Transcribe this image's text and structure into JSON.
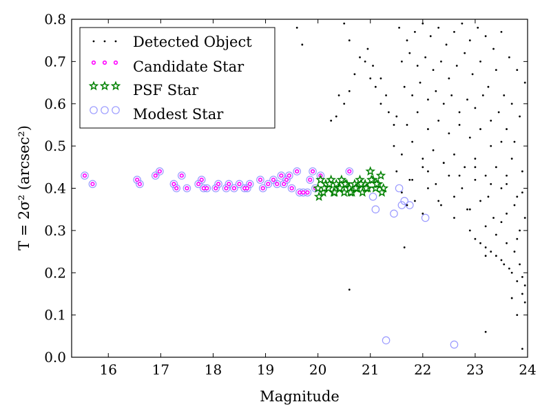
{
  "chart_data": {
    "type": "scatter",
    "title": "",
    "xlabel": "Magnitude",
    "ylabel": "T = 2σ² (arcsec²)",
    "xlim": [
      15.3,
      24.0
    ],
    "ylim": [
      0.0,
      0.8
    ],
    "xticks": [
      16,
      17,
      18,
      19,
      20,
      21,
      22,
      23,
      24
    ],
    "yticks": [
      0.0,
      0.1,
      0.2,
      0.3,
      0.4,
      0.5,
      0.6,
      0.7,
      0.8
    ],
    "grid": false,
    "legend_position": "top-left",
    "series": [
      {
        "name": "Detected Object",
        "marker": "dot",
        "color": "#000000",
        "x": [
          21.55,
          21.7,
          21.85,
          22.0,
          22.15,
          22.3,
          22.45,
          22.6,
          22.75,
          22.9,
          23.05,
          23.2,
          23.35,
          23.5,
          23.65,
          23.8,
          23.95,
          21.6,
          21.75,
          21.9,
          22.05,
          22.2,
          22.35,
          22.5,
          22.65,
          22.8,
          22.95,
          23.1,
          23.25,
          23.4,
          23.55,
          23.7,
          23.85,
          21.65,
          21.8,
          21.95,
          22.1,
          22.25,
          22.4,
          22.55,
          22.7,
          22.85,
          23.0,
          23.15,
          23.3,
          23.45,
          23.6,
          23.75,
          21.5,
          21.7,
          21.9,
          22.1,
          22.3,
          22.5,
          22.7,
          22.9,
          23.1,
          23.3,
          23.5,
          23.7,
          23.9,
          21.45,
          21.6,
          21.8,
          22.0,
          22.2,
          22.4,
          22.6,
          22.8,
          23.0,
          23.2,
          23.4,
          23.6,
          23.8,
          21.5,
          21.75,
          22.0,
          22.25,
          22.5,
          22.75,
          23.0,
          23.25,
          23.5,
          23.75,
          23.95,
          21.6,
          21.85,
          22.1,
          22.35,
          22.6,
          22.85,
          23.1,
          23.35,
          23.6,
          23.85,
          21.7,
          22.0,
          22.3,
          22.6,
          22.9,
          23.2,
          23.5,
          23.8,
          21.8,
          22.1,
          22.4,
          22.7,
          23.0,
          23.3,
          23.6,
          23.9,
          20.95,
          21.05,
          21.2,
          21.3,
          21.35,
          21.45,
          20.8,
          20.7,
          20.6,
          20.5,
          20.4,
          20.35,
          20.25,
          19.6,
          19.7,
          20.5,
          20.6,
          20.9,
          21.0,
          21.1,
          21.2,
          23.0,
          23.2,
          23.4,
          23.55,
          23.7,
          23.8,
          23.9,
          23.95,
          22.9,
          23.1,
          23.3,
          23.5,
          23.65,
          23.75,
          23.85,
          23.9,
          23.95,
          23.6,
          23.4,
          23.2,
          23.7,
          20.6,
          21.65,
          23.2,
          23.8,
          23.9
        ],
        "y": [
          0.78,
          0.75,
          0.77,
          0.79,
          0.76,
          0.78,
          0.74,
          0.77,
          0.79,
          0.75,
          0.78,
          0.76,
          0.73,
          0.77,
          0.71,
          0.68,
          0.65,
          0.7,
          0.72,
          0.69,
          0.71,
          0.68,
          0.7,
          0.66,
          0.69,
          0.72,
          0.67,
          0.7,
          0.64,
          0.68,
          0.62,
          0.6,
          0.57,
          0.64,
          0.62,
          0.65,
          0.61,
          0.63,
          0.6,
          0.62,
          0.58,
          0.61,
          0.59,
          0.62,
          0.56,
          0.58,
          0.54,
          0.51,
          0.57,
          0.55,
          0.58,
          0.54,
          0.56,
          0.53,
          0.55,
          0.52,
          0.54,
          0.5,
          0.51,
          0.47,
          0.44,
          0.5,
          0.48,
          0.51,
          0.47,
          0.49,
          0.46,
          0.48,
          0.45,
          0.47,
          0.43,
          0.45,
          0.41,
          0.38,
          0.44,
          0.42,
          0.45,
          0.41,
          0.43,
          0.4,
          0.42,
          0.38,
          0.4,
          0.36,
          0.33,
          0.39,
          0.37,
          0.4,
          0.36,
          0.38,
          0.35,
          0.37,
          0.33,
          0.34,
          0.3,
          0.36,
          0.34,
          0.37,
          0.33,
          0.35,
          0.31,
          0.32,
          0.28,
          0.42,
          0.44,
          0.46,
          0.43,
          0.45,
          0.41,
          0.43,
          0.39,
          0.73,
          0.69,
          0.66,
          0.62,
          0.58,
          0.55,
          0.71,
          0.67,
          0.63,
          0.6,
          0.62,
          0.57,
          0.56,
          0.78,
          0.74,
          0.79,
          0.75,
          0.7,
          0.66,
          0.64,
          0.6,
          0.28,
          0.26,
          0.24,
          0.22,
          0.2,
          0.18,
          0.15,
          0.13,
          0.3,
          0.27,
          0.25,
          0.23,
          0.21,
          0.25,
          0.22,
          0.19,
          0.17,
          0.27,
          0.29,
          0.24,
          0.14,
          0.16,
          0.26,
          0.06,
          0.1,
          0.02
        ]
      },
      {
        "name": "Candidate Star",
        "marker": "circle-small",
        "color": "#ff00ff",
        "x": [
          15.55,
          15.7,
          16.55,
          16.6,
          16.9,
          16.98,
          17.25,
          17.3,
          17.4,
          17.5,
          17.72,
          17.78,
          17.82,
          17.88,
          18.05,
          18.1,
          18.25,
          18.3,
          18.4,
          18.5,
          18.6,
          18.65,
          18.7,
          18.9,
          18.95,
          19.05,
          19.15,
          19.22,
          19.3,
          19.35,
          19.4,
          19.45,
          19.5,
          19.6,
          19.65,
          19.72,
          19.8,
          19.85,
          19.9,
          19.95,
          20.05,
          20.6
        ],
        "y": [
          0.43,
          0.41,
          0.42,
          0.41,
          0.43,
          0.44,
          0.41,
          0.4,
          0.43,
          0.4,
          0.41,
          0.42,
          0.4,
          0.4,
          0.4,
          0.41,
          0.4,
          0.41,
          0.4,
          0.41,
          0.4,
          0.4,
          0.41,
          0.42,
          0.4,
          0.41,
          0.42,
          0.41,
          0.43,
          0.41,
          0.42,
          0.43,
          0.4,
          0.44,
          0.39,
          0.39,
          0.39,
          0.42,
          0.44,
          0.4,
          0.43,
          0.44
        ]
      },
      {
        "name": "PSF Star",
        "marker": "star",
        "color": "#008000",
        "x": [
          20.0,
          20.05,
          20.1,
          20.15,
          20.2,
          20.25,
          20.3,
          20.35,
          20.4,
          20.45,
          20.5,
          20.55,
          20.6,
          20.65,
          20.7,
          20.75,
          20.8,
          20.85,
          20.9,
          20.95,
          21.0,
          21.05,
          21.1,
          21.15,
          21.2,
          21.25,
          20.02,
          20.12,
          20.22,
          20.32,
          20.42,
          20.52,
          20.62,
          20.72,
          20.82,
          20.92,
          21.02,
          21.12,
          21.22
        ],
        "y": [
          0.4,
          0.42,
          0.39,
          0.41,
          0.4,
          0.42,
          0.39,
          0.41,
          0.4,
          0.42,
          0.39,
          0.41,
          0.4,
          0.39,
          0.41,
          0.4,
          0.42,
          0.39,
          0.41,
          0.4,
          0.44,
          0.42,
          0.4,
          0.41,
          0.43,
          0.4,
          0.38,
          0.4,
          0.41,
          0.39,
          0.4,
          0.41,
          0.39,
          0.4,
          0.41,
          0.4,
          0.42,
          0.41,
          0.39
        ]
      },
      {
        "name": "Modest Star",
        "marker": "circle-open",
        "color": "#9999ff",
        "x": [
          15.55,
          15.7,
          16.55,
          16.6,
          16.9,
          16.98,
          17.25,
          17.3,
          17.4,
          17.5,
          17.72,
          17.78,
          17.82,
          17.88,
          18.05,
          18.1,
          18.25,
          18.3,
          18.4,
          18.5,
          18.6,
          18.65,
          18.7,
          18.9,
          18.95,
          19.05,
          19.15,
          19.22,
          19.3,
          19.35,
          19.4,
          19.45,
          19.5,
          19.6,
          19.65,
          19.72,
          19.8,
          19.85,
          19.9,
          19.95,
          20.05,
          20.6,
          21.05,
          21.1,
          21.45,
          21.55,
          21.6,
          21.65,
          21.75,
          22.05,
          21.3,
          22.6
        ],
        "y": [
          0.43,
          0.41,
          0.42,
          0.41,
          0.43,
          0.44,
          0.41,
          0.4,
          0.43,
          0.4,
          0.41,
          0.42,
          0.4,
          0.4,
          0.4,
          0.41,
          0.4,
          0.41,
          0.4,
          0.41,
          0.4,
          0.4,
          0.41,
          0.42,
          0.4,
          0.41,
          0.42,
          0.41,
          0.43,
          0.41,
          0.42,
          0.43,
          0.4,
          0.44,
          0.39,
          0.39,
          0.39,
          0.42,
          0.44,
          0.4,
          0.43,
          0.44,
          0.38,
          0.35,
          0.34,
          0.4,
          0.36,
          0.37,
          0.36,
          0.33,
          0.04,
          0.03
        ]
      }
    ]
  }
}
